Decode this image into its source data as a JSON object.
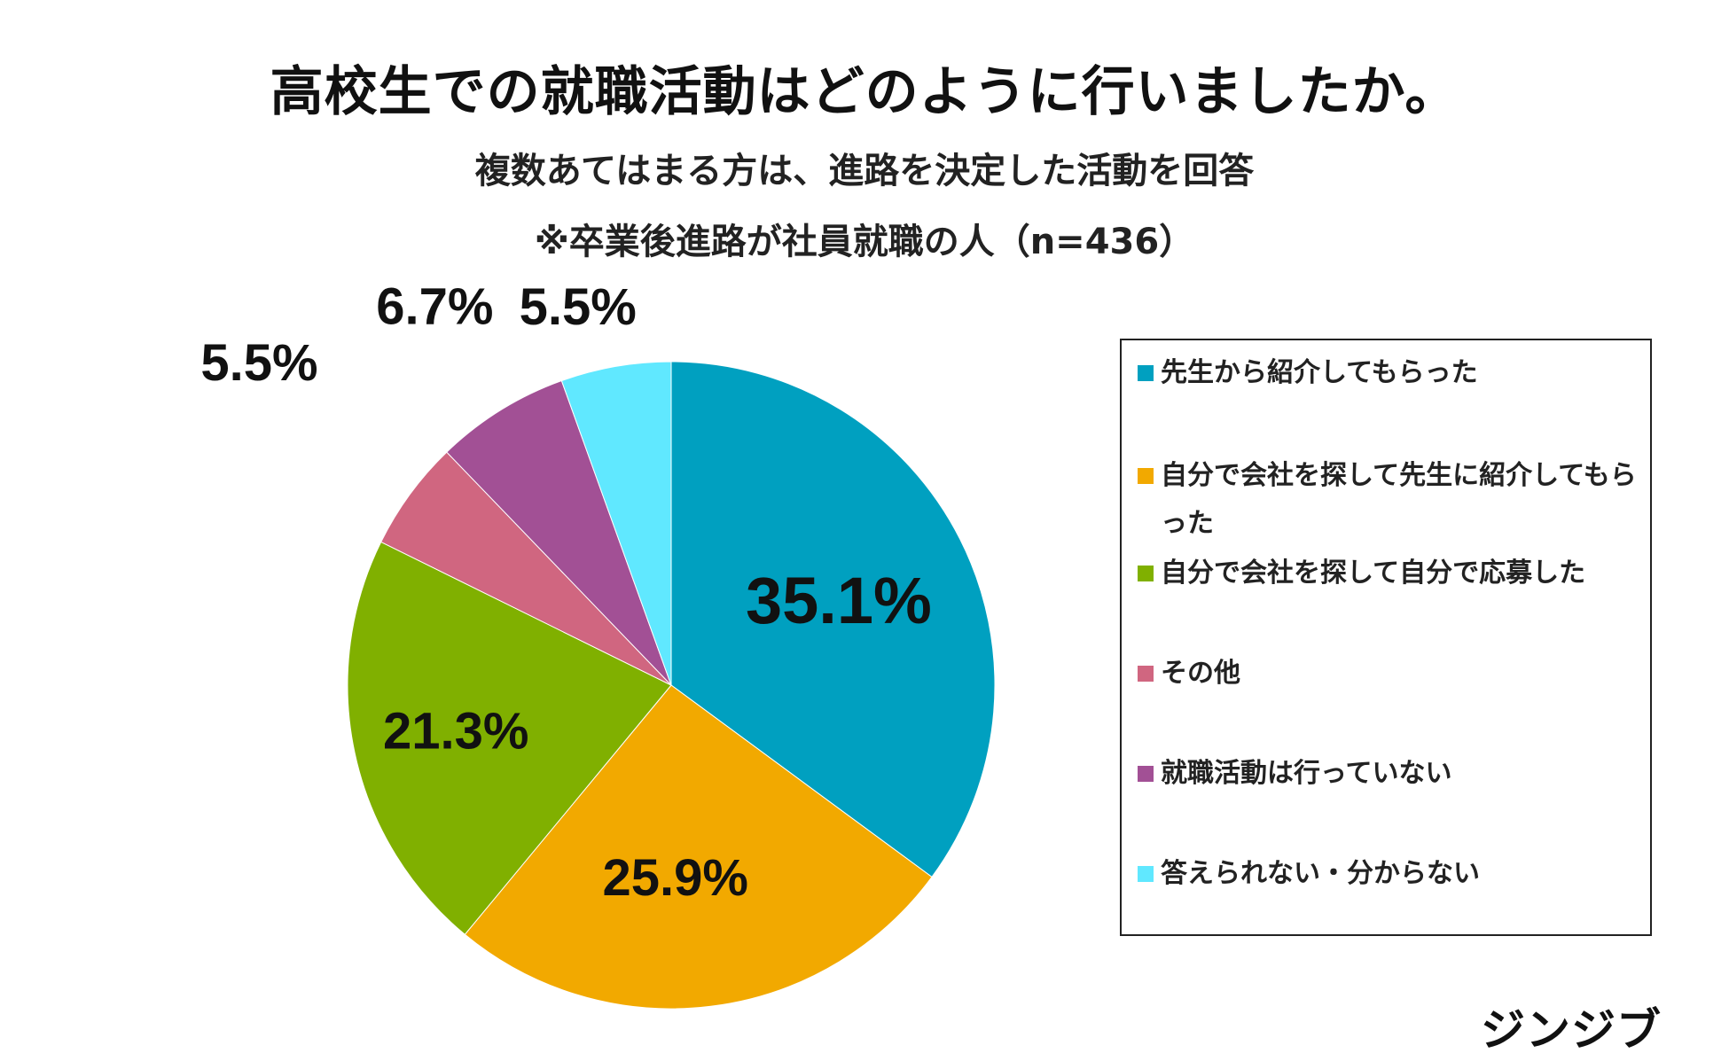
{
  "title": "高校生での就職活動はどのように行いましたか。",
  "subtitle_line1": "複数あてはまる方は、進路を決定した活動を回答",
  "subtitle_line2": "※卒業後進路が社員就職の人（n=436）",
  "logo_text": "ジンジブ",
  "chart_data": {
    "type": "pie",
    "title": "高校生での就職活動はどのように行いましたか。",
    "categories": [
      "先生から紹介してもらった",
      "自分で会社を探して先生に紹介してもらった",
      "自分で会社を探して自分で応募した",
      "その他",
      "就職活動は行っていない",
      "答えられない・分からない"
    ],
    "values": [
      35.1,
      25.9,
      21.3,
      5.5,
      6.7,
      5.5
    ],
    "data_labels": [
      "35.1%",
      "25.9%",
      "21.3%",
      "5.5%",
      "6.7%",
      "5.5%"
    ],
    "colors": [
      "#00a0c0",
      "#f2a900",
      "#80b000",
      "#d06680",
      "#a25095",
      "#60e8ff"
    ],
    "start": "12 o'clock",
    "direction": "clockwise",
    "legend_position": "right"
  }
}
